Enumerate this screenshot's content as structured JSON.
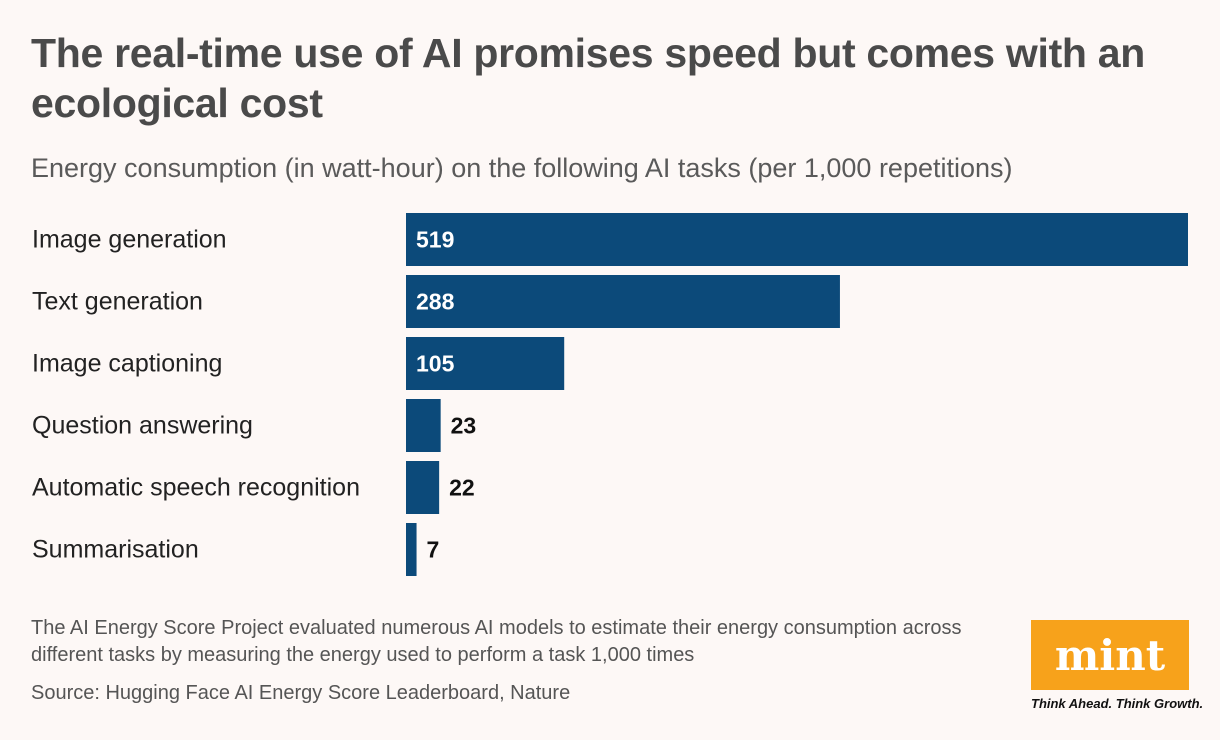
{
  "title": "The real-time use of AI promises speed but comes with an ecological cost",
  "subtitle": "Energy consumption (in watt-hour) on the following AI tasks (per 1,000 repetitions)",
  "chart_data": {
    "type": "bar",
    "orientation": "horizontal",
    "title": "The real-time use of AI promises speed but comes with an ecological cost",
    "subtitle": "Energy consumption (in watt-hour) on the following AI tasks (per 1,000 repetitions)",
    "categories": [
      "Image generation",
      "Text generation",
      "Image captioning",
      "Question answering",
      "Automatic speech recognition",
      "Summarisation"
    ],
    "values": [
      519,
      288,
      105,
      23,
      22,
      7
    ],
    "xlim": [
      0,
      519
    ],
    "xlabel": "",
    "ylabel": "",
    "grid": false,
    "bar_color": "#0c4a7a"
  },
  "footer": {
    "note": "The AI Energy Score Project evaluated numerous AI models to estimate their energy consumption across different tasks by measuring the energy used to perform a task 1,000 times",
    "source": "Source: Hugging Face AI Energy Score Leaderboard, Nature"
  },
  "brand": {
    "logo_text": "mint",
    "tagline": "Think Ahead. Think Growth.",
    "logo_color": "#f7a21b"
  }
}
